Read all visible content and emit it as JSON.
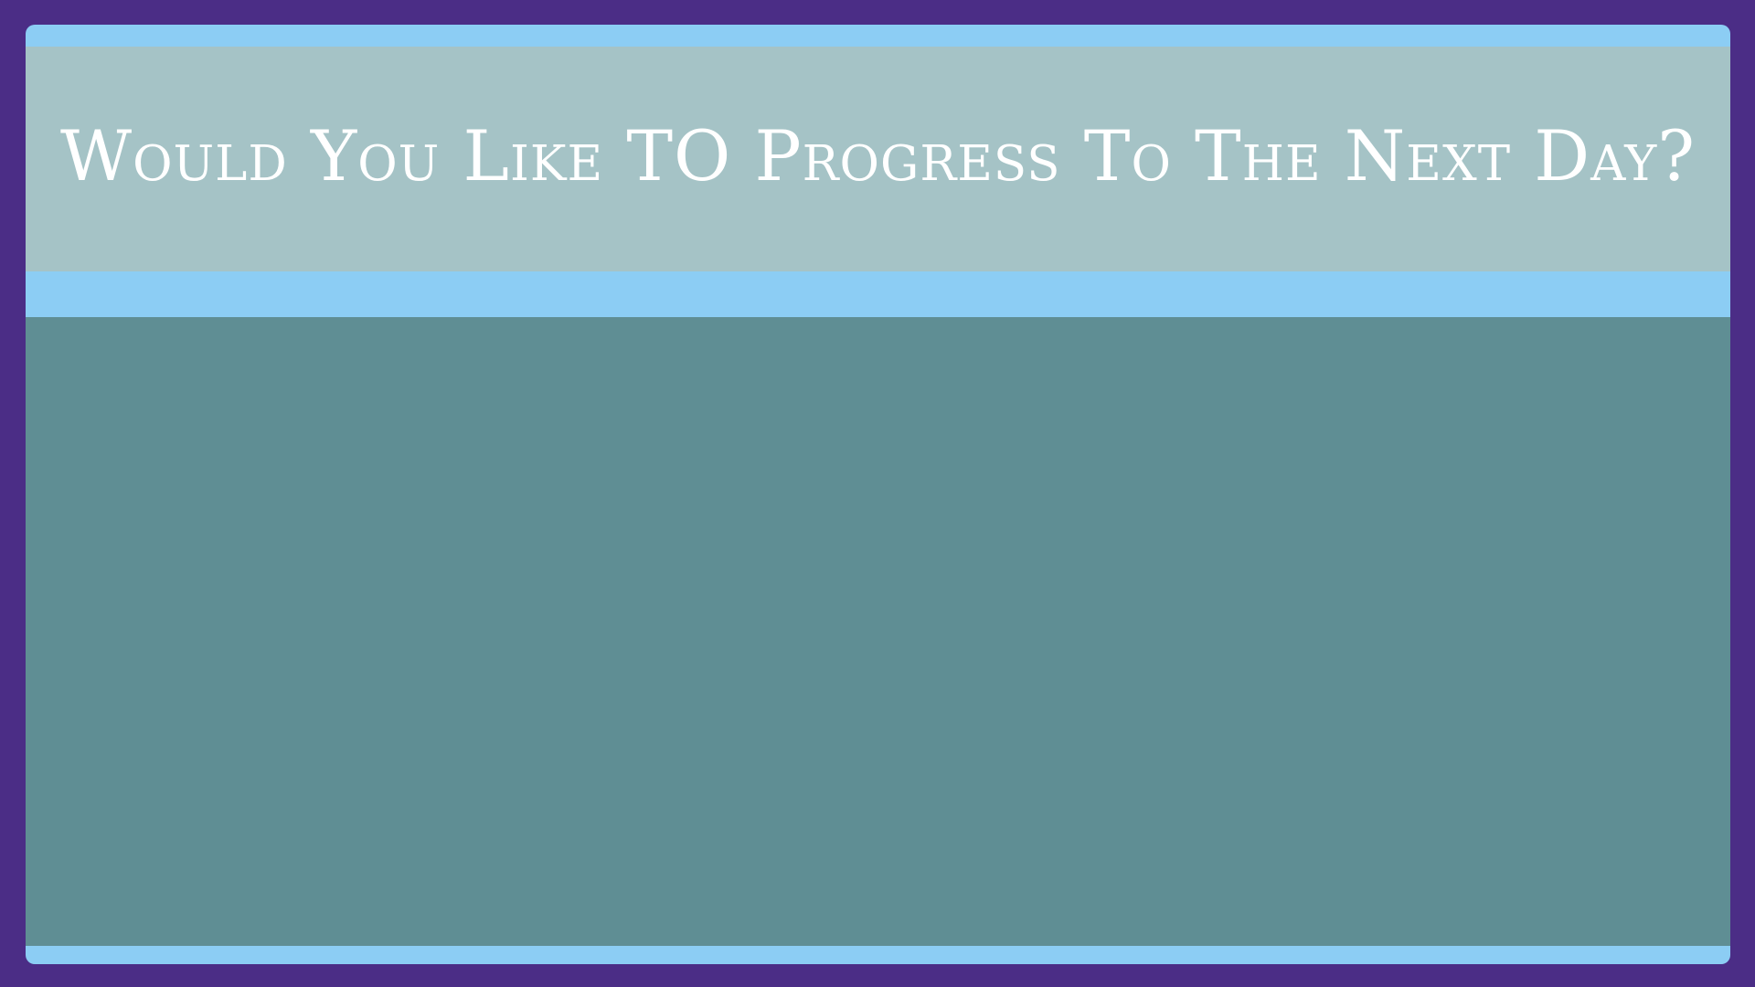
{
  "dialog": {
    "title": "Would You Like TO Progress To The Next Day?"
  },
  "colors": {
    "outer_border": "#4b2d86",
    "accent_band": "#8ccdf4",
    "title_band": "#a5c3c6",
    "content_panel": "#5f8e94",
    "title_text": "#ffffff"
  }
}
